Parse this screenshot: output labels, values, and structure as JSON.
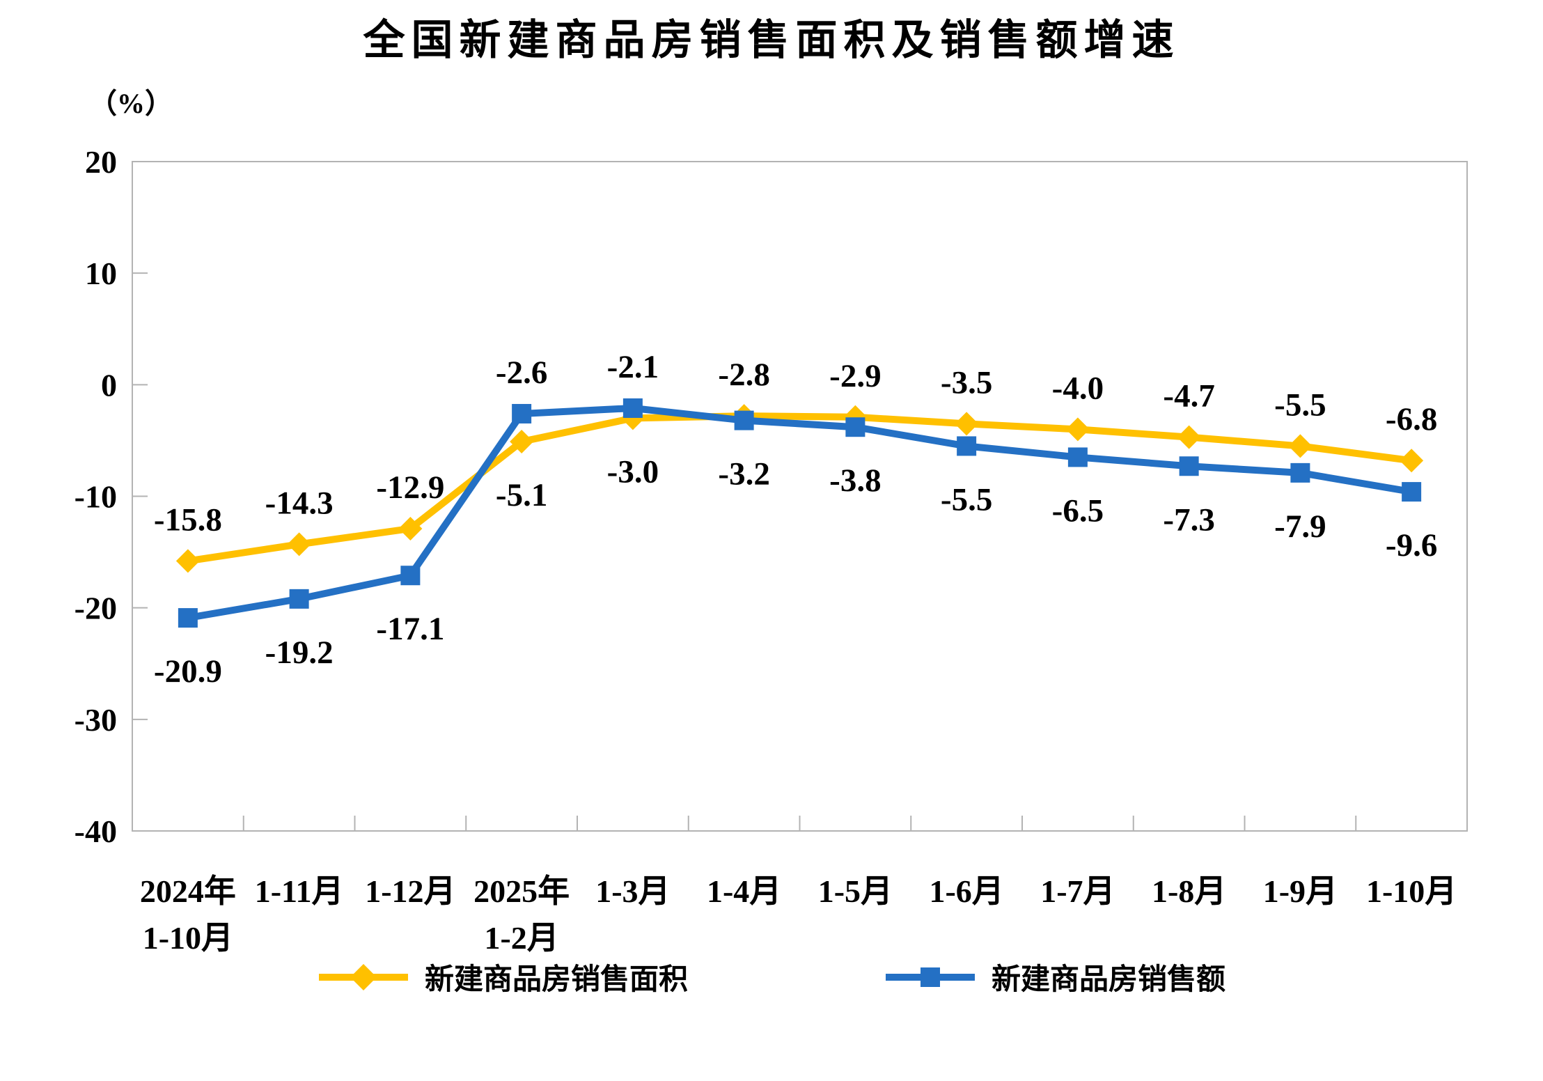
{
  "chart_data": {
    "type": "line",
    "title": "全国新建商品房销售面积及销售额增速",
    "xlabel": "",
    "ylabel": "（%）",
    "categories": [
      "2024年\n1-10月",
      "1-11月",
      "1-12月",
      "2025年\n1-2月",
      "1-3月",
      "1-4月",
      "1-5月",
      "1-6月",
      "1-7月",
      "1-8月",
      "1-9月",
      "1-10月"
    ],
    "series": [
      {
        "id": "sales-area",
        "name": "新建商品房销售面积",
        "color": "#FFC000",
        "marker": "diamond",
        "values": [
          -15.8,
          -14.3,
          -12.9,
          -5.1,
          -3.0,
          -2.8,
          -2.9,
          -3.5,
          -4.0,
          -4.7,
          -5.5,
          -6.8
        ],
        "label_side": [
          "above",
          "above",
          "above",
          "below",
          "below",
          "above",
          "above",
          "above",
          "above",
          "above",
          "above",
          "above"
        ]
      },
      {
        "id": "sales-amount",
        "name": "新建商品房销售额",
        "color": "#2470C4",
        "marker": "square",
        "values": [
          -20.9,
          -19.2,
          -17.1,
          -2.6,
          -2.1,
          -3.2,
          -3.8,
          -5.5,
          -6.5,
          -7.3,
          -7.9,
          -9.6
        ],
        "label_side": [
          "below",
          "below",
          "below",
          "above",
          "above",
          "below",
          "below",
          "below",
          "below",
          "below",
          "below",
          "below"
        ]
      }
    ],
    "ylim": [
      -40,
      20
    ],
    "yticks": [
      20,
      10,
      0,
      -10,
      -20,
      -30,
      -40
    ],
    "grid": false,
    "legend_position": "bottom"
  }
}
